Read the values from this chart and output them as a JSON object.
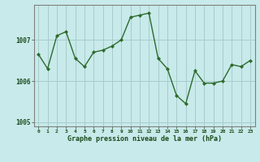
{
  "x": [
    0,
    1,
    2,
    3,
    4,
    5,
    6,
    7,
    8,
    9,
    10,
    11,
    12,
    13,
    14,
    15,
    16,
    17,
    18,
    19,
    20,
    21,
    22,
    23
  ],
  "y": [
    1006.65,
    1006.3,
    1007.1,
    1007.2,
    1006.55,
    1006.35,
    1006.7,
    1006.75,
    1006.85,
    1007.0,
    1007.55,
    1007.6,
    1007.65,
    1006.55,
    1006.3,
    1005.65,
    1005.45,
    1006.25,
    1005.95,
    1005.95,
    1006.0,
    1006.4,
    1006.35,
    1006.5
  ],
  "line_color": "#2d6a2d",
  "marker_color": "#2d6a2d",
  "bg_color": "#c8eaea",
  "plot_bg_color": "#c8eaea",
  "grid_color": "#a8cccc",
  "border_color": "#808080",
  "xlabel": "Graphe pression niveau de la mer (hPa)",
  "xlabel_color": "#1a4a1a",
  "tick_label_color": "#1a4a1a",
  "yticks": [
    1005,
    1006,
    1007
  ],
  "ylim": [
    1004.9,
    1007.85
  ],
  "xlim": [
    -0.5,
    23.5
  ],
  "xtick_labels": [
    "0",
    "1",
    "2",
    "3",
    "4",
    "5",
    "6",
    "7",
    "8",
    "9",
    "10",
    "11",
    "12",
    "13",
    "14",
    "15",
    "16",
    "17",
    "18",
    "19",
    "20",
    "21",
    "22",
    "23"
  ]
}
